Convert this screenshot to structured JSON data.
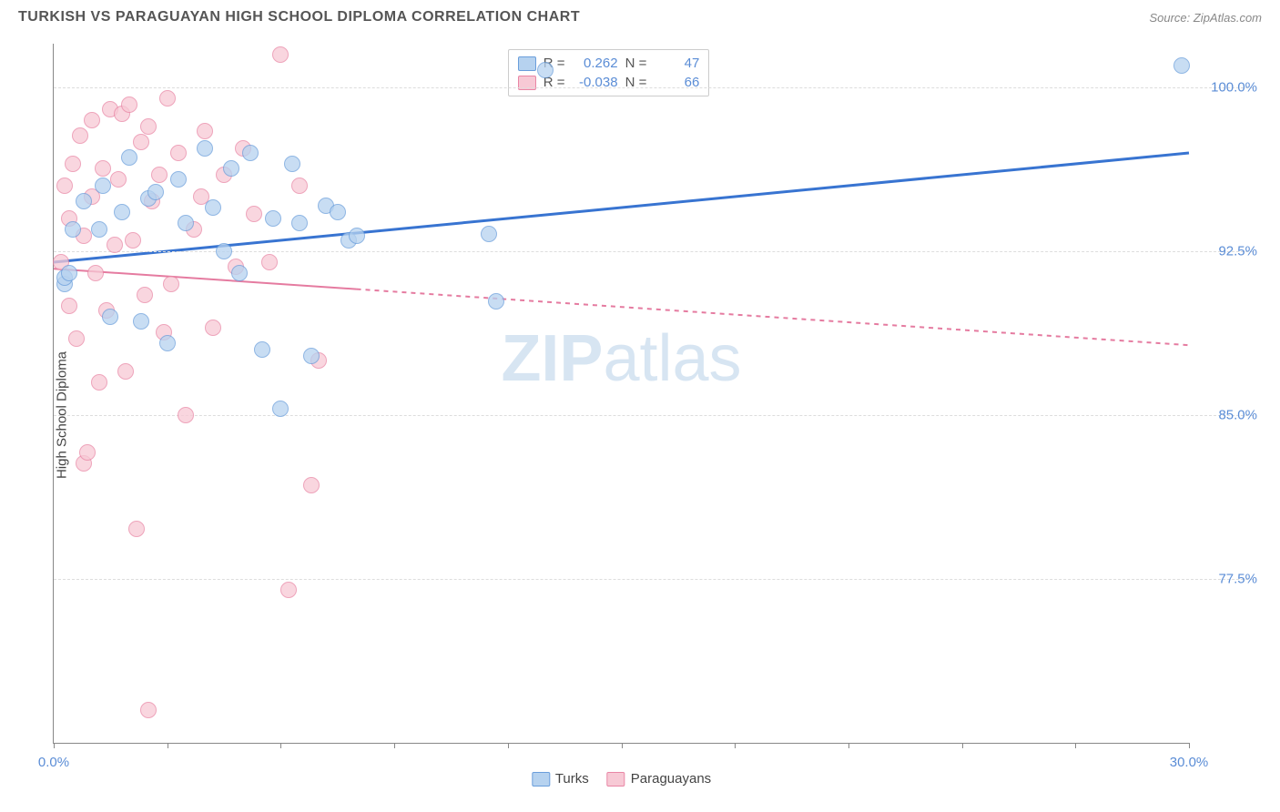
{
  "title": "TURKISH VS PARAGUAYAN HIGH SCHOOL DIPLOMA CORRELATION CHART",
  "source": "Source: ZipAtlas.com",
  "watermark": {
    "part1": "ZIP",
    "part2": "atlas"
  },
  "chart": {
    "type": "scatter",
    "y_axis_label": "High School Diploma",
    "background_color": "#ffffff",
    "grid_color": "#dddddd",
    "axis_color": "#888888",
    "text_color": "#555555",
    "tick_label_color": "#5b8dd6",
    "label_fontsize": 15,
    "title_fontsize": 16,
    "xlim": [
      0,
      30
    ],
    "ylim": [
      70,
      102
    ],
    "y_ticks": [
      77.5,
      85.0,
      92.5,
      100.0
    ],
    "y_tick_labels": [
      "77.5%",
      "85.0%",
      "92.5%",
      "100.0%"
    ],
    "x_ticks": [
      0,
      3,
      6,
      9,
      12,
      15,
      18,
      21,
      24,
      27,
      30
    ],
    "x_tick_labels": {
      "0": "0.0%",
      "30": "30.0%"
    },
    "series": [
      {
        "name": "Turks",
        "marker_fill": "#b6d2ef",
        "marker_stroke": "#6a9edb",
        "line_color": "#3874d1",
        "line_width": 3,
        "line_dash": "none",
        "r_value": "0.262",
        "n_value": "47",
        "trend": {
          "x1": 0,
          "y1": 92.0,
          "x2": 30,
          "y2": 97.0,
          "solid_until_x": 30
        },
        "points": [
          [
            0.3,
            91.0
          ],
          [
            0.3,
            91.3
          ],
          [
            0.4,
            91.5
          ],
          [
            0.5,
            93.5
          ],
          [
            0.8,
            94.8
          ],
          [
            1.2,
            93.5
          ],
          [
            1.3,
            95.5
          ],
          [
            1.5,
            89.5
          ],
          [
            1.8,
            94.3
          ],
          [
            2.0,
            96.8
          ],
          [
            2.3,
            89.3
          ],
          [
            2.5,
            94.9
          ],
          [
            2.7,
            95.2
          ],
          [
            3.0,
            88.3
          ],
          [
            3.3,
            95.8
          ],
          [
            3.5,
            93.8
          ],
          [
            4.0,
            97.2
          ],
          [
            4.2,
            94.5
          ],
          [
            4.5,
            92.5
          ],
          [
            4.7,
            96.3
          ],
          [
            4.9,
            91.5
          ],
          [
            5.2,
            97.0
          ],
          [
            5.5,
            88.0
          ],
          [
            5.8,
            94.0
          ],
          [
            6.0,
            85.3
          ],
          [
            6.3,
            96.5
          ],
          [
            6.5,
            93.8
          ],
          [
            6.8,
            87.7
          ],
          [
            7.2,
            94.6
          ],
          [
            7.5,
            94.3
          ],
          [
            7.8,
            93.0
          ],
          [
            8.0,
            93.2
          ],
          [
            11.5,
            93.3
          ],
          [
            11.7,
            90.2
          ],
          [
            13.0,
            100.8
          ],
          [
            29.8,
            101.0
          ]
        ]
      },
      {
        "name": "Paraguayans",
        "marker_fill": "#f7c9d5",
        "marker_stroke": "#e986a5",
        "line_color": "#e57ba0",
        "line_width": 2,
        "line_dash": "5,5",
        "r_value": "-0.038",
        "n_value": "66",
        "trend": {
          "x1": 0,
          "y1": 91.7,
          "x2": 30,
          "y2": 88.2,
          "solid_until_x": 8
        },
        "points": [
          [
            0.2,
            92.0
          ],
          [
            0.3,
            95.5
          ],
          [
            0.4,
            90.0
          ],
          [
            0.4,
            94.0
          ],
          [
            0.5,
            96.5
          ],
          [
            0.6,
            88.5
          ],
          [
            0.7,
            97.8
          ],
          [
            0.8,
            93.2
          ],
          [
            0.8,
            82.8
          ],
          [
            0.9,
            83.3
          ],
          [
            1.0,
            95.0
          ],
          [
            1.0,
            98.5
          ],
          [
            1.1,
            91.5
          ],
          [
            1.2,
            86.5
          ],
          [
            1.3,
            96.3
          ],
          [
            1.4,
            89.8
          ],
          [
            1.5,
            99.0
          ],
          [
            1.6,
            92.8
          ],
          [
            1.7,
            95.8
          ],
          [
            1.8,
            98.8
          ],
          [
            1.9,
            87.0
          ],
          [
            2.0,
            99.2
          ],
          [
            2.1,
            93.0
          ],
          [
            2.2,
            79.8
          ],
          [
            2.3,
            97.5
          ],
          [
            2.4,
            90.5
          ],
          [
            2.5,
            98.2
          ],
          [
            2.5,
            71.5
          ],
          [
            2.6,
            94.8
          ],
          [
            2.8,
            96.0
          ],
          [
            2.9,
            88.8
          ],
          [
            3.0,
            99.5
          ],
          [
            3.1,
            91.0
          ],
          [
            3.3,
            97.0
          ],
          [
            3.5,
            85.0
          ],
          [
            3.7,
            93.5
          ],
          [
            3.9,
            95.0
          ],
          [
            4.0,
            98.0
          ],
          [
            4.2,
            89.0
          ],
          [
            4.5,
            96.0
          ],
          [
            4.8,
            91.8
          ],
          [
            5.0,
            97.2
          ],
          [
            5.3,
            94.2
          ],
          [
            5.7,
            92.0
          ],
          [
            6.0,
            101.5
          ],
          [
            6.2,
            77.0
          ],
          [
            6.5,
            95.5
          ],
          [
            6.8,
            81.8
          ],
          [
            7.0,
            87.5
          ]
        ]
      }
    ],
    "marker_radius": 9
  },
  "stats_box": {
    "r_label": "R =",
    "n_label": "N ="
  },
  "bottom_legend": {
    "series1": "Turks",
    "series2": "Paraguayans"
  }
}
